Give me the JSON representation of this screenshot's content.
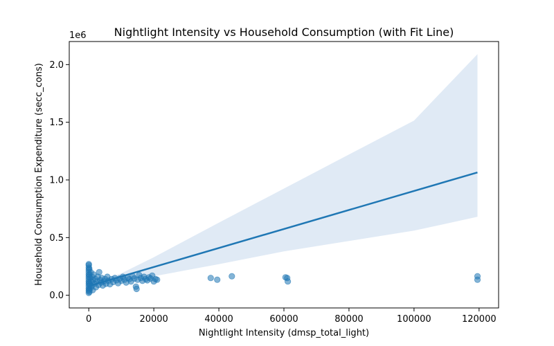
{
  "chart_data": {
    "type": "scatter",
    "title": "Nightlight Intensity vs Household Consumption (with Fit Line)",
    "xlabel": "Nightlight Intensity (dmsp_total_light)",
    "ylabel": "Household Consumption Expenditure (secc_cons)",
    "y_offset_label": "1e6",
    "xlim": [
      -6000,
      126000
    ],
    "ylim": [
      -110000,
      2200000
    ],
    "x_ticks": [
      0,
      20000,
      40000,
      60000,
      80000,
      100000,
      120000
    ],
    "x_tick_labels": [
      "0",
      "20000",
      "40000",
      "60000",
      "80000",
      "100000",
      "120000"
    ],
    "y_ticks": [
      0,
      500000,
      1000000,
      1500000,
      2000000
    ],
    "y_tick_labels": [
      "0.0",
      "0.5",
      "1.0",
      "1.5",
      "2.0"
    ],
    "grid": false,
    "point_color": "#1f77b4",
    "line_color": "#1f77b4",
    "band_color": "#dbe6f3",
    "fit_line": {
      "x": [
        0,
        119500
      ],
      "y": [
        80000,
        1065000
      ]
    },
    "confidence_band": {
      "x": [
        0,
        10000,
        20000,
        40000,
        60000,
        80000,
        100000,
        119500
      ],
      "upper": [
        95000,
        190000,
        330000,
        630000,
        925000,
        1220000,
        1515000,
        2090000
      ],
      "lower": [
        72000,
        125000,
        165000,
        270000,
        380000,
        470000,
        560000,
        680000
      ]
    },
    "points": [
      {
        "x": 0,
        "y": 20000
      },
      {
        "x": 0,
        "y": 40000
      },
      {
        "x": 0,
        "y": 60000
      },
      {
        "x": 0,
        "y": 80000
      },
      {
        "x": 0,
        "y": 100000
      },
      {
        "x": 0,
        "y": 120000
      },
      {
        "x": 0,
        "y": 140000
      },
      {
        "x": 0,
        "y": 160000
      },
      {
        "x": 0,
        "y": 180000
      },
      {
        "x": 0,
        "y": 200000
      },
      {
        "x": 0,
        "y": 220000
      },
      {
        "x": 0,
        "y": 240000
      },
      {
        "x": 0,
        "y": 260000
      },
      {
        "x": 0,
        "y": 270000
      },
      {
        "x": 100,
        "y": 50000
      },
      {
        "x": 100,
        "y": 110000
      },
      {
        "x": 150,
        "y": 230000
      },
      {
        "x": 200,
        "y": 30000
      },
      {
        "x": 200,
        "y": 175000
      },
      {
        "x": 300,
        "y": 90000
      },
      {
        "x": 400,
        "y": 150000
      },
      {
        "x": 500,
        "y": 60000
      },
      {
        "x": 600,
        "y": 200000
      },
      {
        "x": 700,
        "y": 120000
      },
      {
        "x": 900,
        "y": 80000
      },
      {
        "x": 1000,
        "y": 160000
      },
      {
        "x": 1200,
        "y": 45000
      },
      {
        "x": 1300,
        "y": 130000
      },
      {
        "x": 1500,
        "y": 180000
      },
      {
        "x": 1700,
        "y": 100000
      },
      {
        "x": 2000,
        "y": 140000
      },
      {
        "x": 2200,
        "y": 70000
      },
      {
        "x": 2500,
        "y": 120000
      },
      {
        "x": 2800,
        "y": 160000
      },
      {
        "x": 3000,
        "y": 90000
      },
      {
        "x": 3200,
        "y": 200000
      },
      {
        "x": 3500,
        "y": 130000
      },
      {
        "x": 3800,
        "y": 110000
      },
      {
        "x": 4000,
        "y": 150000
      },
      {
        "x": 4300,
        "y": 85000
      },
      {
        "x": 4600,
        "y": 120000
      },
      {
        "x": 5000,
        "y": 140000
      },
      {
        "x": 5300,
        "y": 100000
      },
      {
        "x": 5700,
        "y": 160000
      },
      {
        "x": 6000,
        "y": 125000
      },
      {
        "x": 6500,
        "y": 95000
      },
      {
        "x": 7000,
        "y": 140000
      },
      {
        "x": 7500,
        "y": 115000
      },
      {
        "x": 8000,
        "y": 150000
      },
      {
        "x": 8500,
        "y": 130000
      },
      {
        "x": 9000,
        "y": 105000
      },
      {
        "x": 9500,
        "y": 145000
      },
      {
        "x": 10000,
        "y": 125000
      },
      {
        "x": 10500,
        "y": 160000
      },
      {
        "x": 11000,
        "y": 135000
      },
      {
        "x": 11500,
        "y": 110000
      },
      {
        "x": 12000,
        "y": 150000
      },
      {
        "x": 12500,
        "y": 140000
      },
      {
        "x": 13000,
        "y": 120000
      },
      {
        "x": 13500,
        "y": 165000
      },
      {
        "x": 14000,
        "y": 145000
      },
      {
        "x": 14500,
        "y": 75000
      },
      {
        "x": 14700,
        "y": 55000
      },
      {
        "x": 15000,
        "y": 135000
      },
      {
        "x": 15500,
        "y": 175000
      },
      {
        "x": 16000,
        "y": 150000
      },
      {
        "x": 16500,
        "y": 125000
      },
      {
        "x": 17000,
        "y": 160000
      },
      {
        "x": 17500,
        "y": 140000
      },
      {
        "x": 18000,
        "y": 130000
      },
      {
        "x": 18500,
        "y": 155000
      },
      {
        "x": 19000,
        "y": 145000
      },
      {
        "x": 19500,
        "y": 170000
      },
      {
        "x": 20000,
        "y": 120000
      },
      {
        "x": 20500,
        "y": 140000
      },
      {
        "x": 21000,
        "y": 135000
      },
      {
        "x": 37500,
        "y": 150000
      },
      {
        "x": 39500,
        "y": 135000
      },
      {
        "x": 44000,
        "y": 165000
      },
      {
        "x": 60500,
        "y": 155000
      },
      {
        "x": 61000,
        "y": 150000
      },
      {
        "x": 61200,
        "y": 120000
      },
      {
        "x": 119500,
        "y": 165000
      },
      {
        "x": 119500,
        "y": 135000
      }
    ]
  }
}
